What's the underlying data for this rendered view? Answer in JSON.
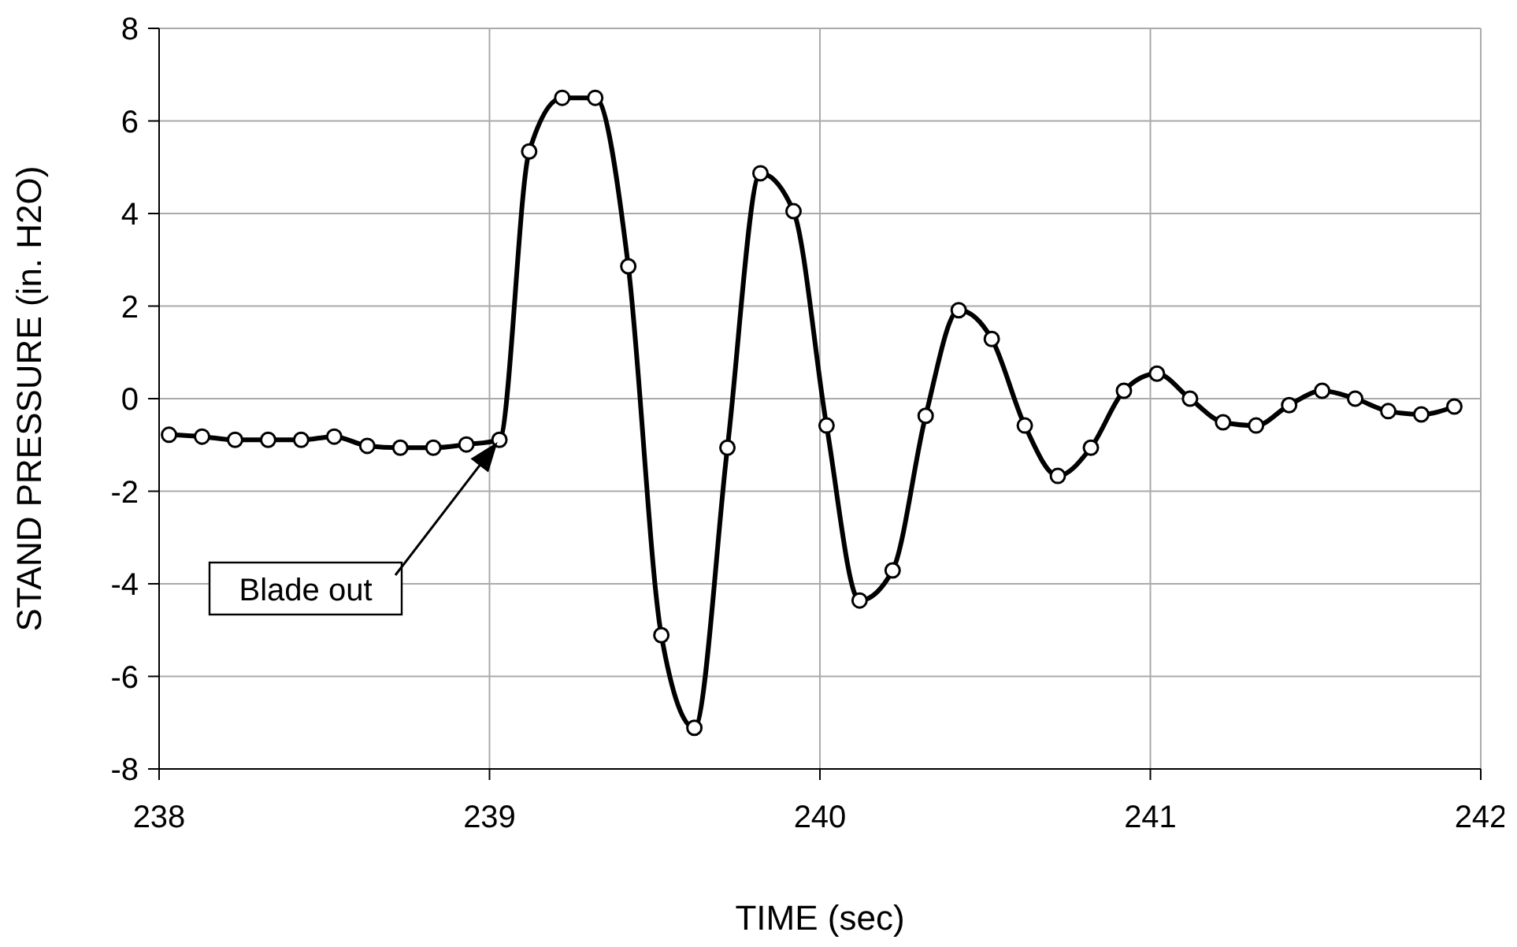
{
  "chart_data": {
    "type": "line",
    "xlabel": "TIME (sec)",
    "ylabel": "STAND PRESSURE (in. H2O)",
    "x": [
      238.03,
      238.13,
      238.23,
      238.33,
      238.43,
      238.53,
      238.63,
      238.73,
      238.83,
      238.93,
      239.03,
      239.12,
      239.22,
      239.32,
      239.42,
      239.52,
      239.62,
      239.72,
      239.82,
      239.92,
      240.02,
      240.12,
      240.22,
      240.32,
      240.42,
      240.52,
      240.62,
      240.72,
      240.82,
      240.92,
      241.02,
      241.12,
      241.22,
      241.32,
      241.42,
      241.52,
      241.62,
      241.72,
      241.82,
      241.92
    ],
    "series": [
      {
        "color": "#000000",
        "values": [
          -0.78,
          -0.82,
          -0.89,
          -0.89,
          -0.89,
          -0.82,
          -1.02,
          -1.06,
          -1.06,
          -0.99,
          -0.89,
          5.34,
          6.5,
          6.5,
          2.86,
          -5.11,
          -7.11,
          -1.06,
          4.87,
          4.05,
          -0.58,
          -4.36,
          -3.71,
          -0.37,
          1.91,
          1.29,
          -0.58,
          -1.67,
          -1.06,
          0.17,
          0.54,
          0.0,
          -0.51,
          -0.58,
          -0.14,
          0.17,
          0.0,
          -0.27,
          -0.34,
          -0.17
        ]
      }
    ],
    "xlim": [
      238,
      242
    ],
    "xticks": [
      238,
      239,
      240,
      241,
      242
    ],
    "ylim": [
      -8,
      8
    ],
    "yticks": [
      -8,
      -6,
      -4,
      -2,
      0,
      2,
      4,
      6,
      8
    ],
    "grid": true,
    "marker": "circle",
    "line_style": "solid",
    "annotations": [
      "Blade out"
    ]
  }
}
